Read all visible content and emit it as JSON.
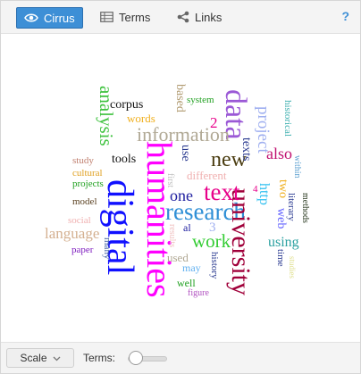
{
  "toolbar": {
    "tabs": [
      {
        "label": "Cirrus",
        "icon": "eye-icon"
      },
      {
        "label": "Terms",
        "icon": "table-icon"
      },
      {
        "label": "Links",
        "icon": "share-icon"
      }
    ],
    "help_label": "?"
  },
  "cloud": {
    "words": [
      {
        "t": "digital",
        "c": "#1010ff"
      },
      {
        "t": "humanities",
        "c": "#ff00ff"
      },
      {
        "t": "research",
        "c": "#2f8fd6"
      },
      {
        "t": "data",
        "c": "#9b59d6"
      },
      {
        "t": "university",
        "c": "#a0003a"
      },
      {
        "t": "text",
        "c": "#e8008a"
      },
      {
        "t": "information",
        "c": "#b0a894"
      },
      {
        "t": "new",
        "c": "#4a3c10"
      },
      {
        "t": "analysis",
        "c": "#3ec23e"
      },
      {
        "t": "project",
        "c": "#a0b0f0"
      },
      {
        "t": "work",
        "c": "#33cc33"
      },
      {
        "t": "language",
        "c": "#d4b090"
      },
      {
        "t": "also",
        "c": "#c01070"
      },
      {
        "t": "using",
        "c": "#2aa0a0"
      },
      {
        "t": "one",
        "c": "#2020a0"
      },
      {
        "t": "http",
        "c": "#30c0f0"
      },
      {
        "t": "web",
        "c": "#6060ff"
      },
      {
        "t": "corpus",
        "c": "#111111"
      },
      {
        "t": "words",
        "c": "#f0b020"
      },
      {
        "t": "based",
        "c": "#b09a70"
      },
      {
        "t": "system",
        "c": "#22a022"
      },
      {
        "t": "texts",
        "c": "#2a3a90"
      },
      {
        "t": "historical",
        "c": "#3fb0b0"
      },
      {
        "t": "within",
        "c": "#5ca0d0"
      },
      {
        "t": "tools",
        "c": "#111111"
      },
      {
        "t": "use",
        "c": "#2a3a90"
      },
      {
        "t": "different",
        "c": "#f0b0b0"
      },
      {
        "t": "first",
        "c": "#c0c0c0"
      },
      {
        "t": "study",
        "c": "#c08070"
      },
      {
        "t": "cultural",
        "c": "#e0a020"
      },
      {
        "t": "projects",
        "c": "#20a020"
      },
      {
        "t": "model",
        "c": "#5a4020"
      },
      {
        "t": "social",
        "c": "#f0b0b0"
      },
      {
        "t": "paper",
        "c": "#8020c0"
      },
      {
        "t": "many",
        "c": "#4060a0"
      },
      {
        "t": "results",
        "c": "#f0c0c0"
      },
      {
        "t": "al",
        "c": "#2020a0"
      },
      {
        "t": "used",
        "c": "#b0a894"
      },
      {
        "t": "may",
        "c": "#60b0f0"
      },
      {
        "t": "well",
        "c": "#20a020"
      },
      {
        "t": "figure",
        "c": "#b050c0"
      },
      {
        "t": "history",
        "c": "#2a3a90"
      },
      {
        "t": "literary",
        "c": "#2a3a90"
      },
      {
        "t": "methods",
        "c": "#2a3a20"
      },
      {
        "t": "two",
        "c": "#f0b020"
      },
      {
        "t": "time",
        "c": "#2a3a90"
      },
      {
        "t": "studies",
        "c": "#e0e090"
      },
      {
        "t": "2",
        "c": "#e8008a"
      },
      {
        "t": "3",
        "c": "#a0b0f0"
      },
      {
        "t": "4",
        "c": "#e8008a"
      }
    ]
  },
  "bottom": {
    "scale_label": "Scale",
    "terms_label": "Terms:",
    "terms_slider_level": 0.1
  }
}
